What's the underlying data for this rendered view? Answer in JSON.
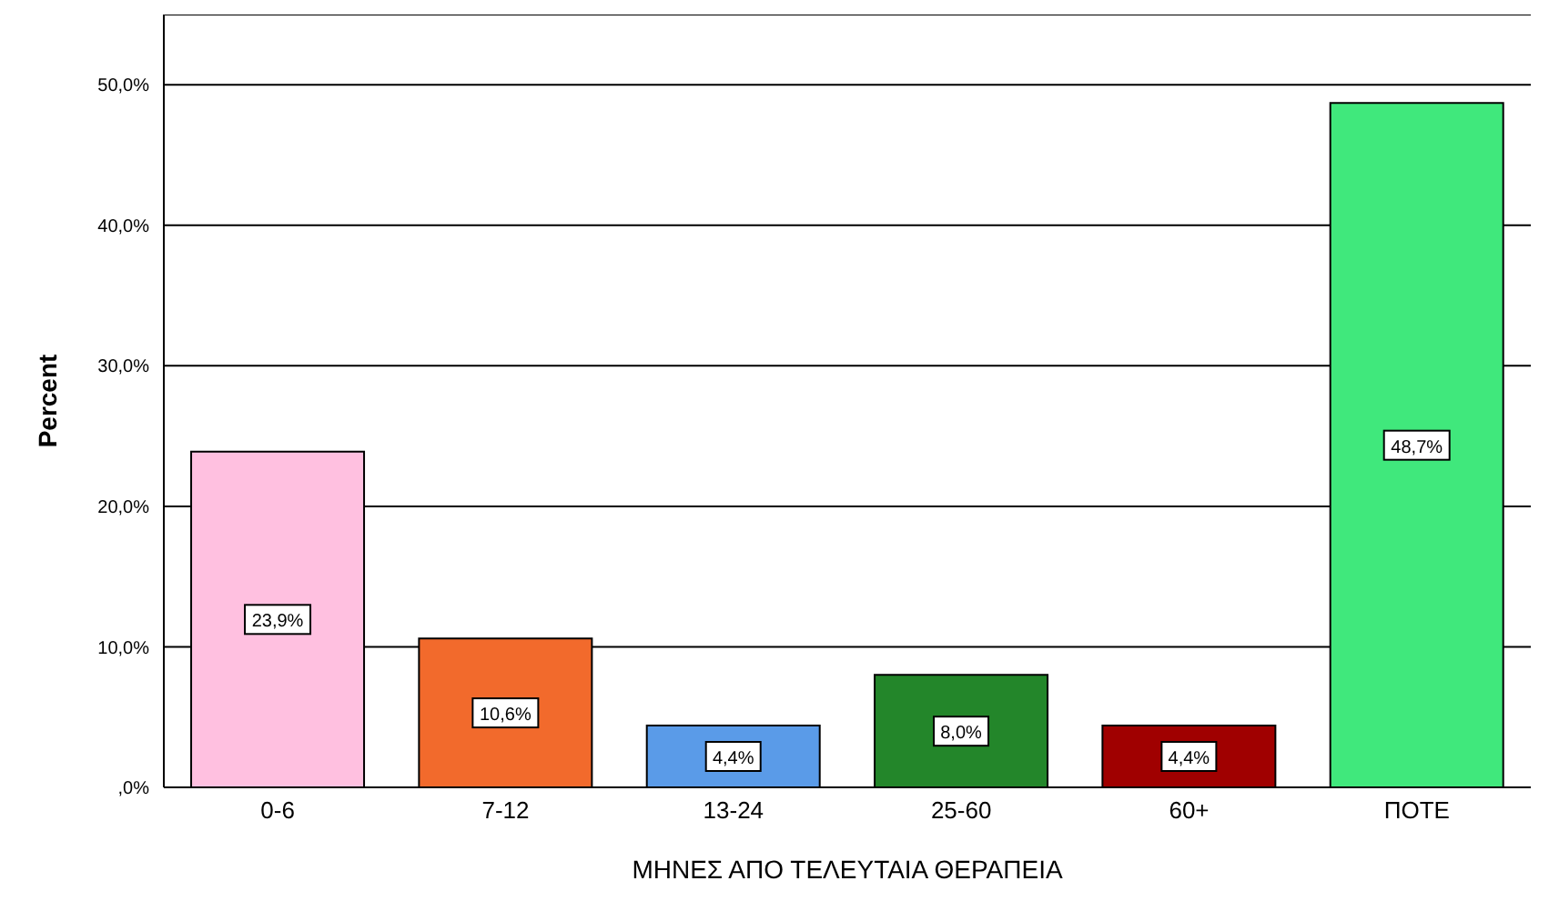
{
  "chart_data": {
    "type": "bar",
    "xlabel": "ΜΗΝΕΣ ΑΠΟ ΤΕΛΕΥΤΑΙΑ ΘΕΡΑΠΕΙΑ",
    "ylabel": "Percent",
    "categories": [
      "0-6",
      "7-12",
      "13-24",
      "25-60",
      "60+",
      "ΠΟΤΕ"
    ],
    "values": [
      23.9,
      10.6,
      4.4,
      8.0,
      4.4,
      48.7
    ],
    "colors": [
      "#ffc0e0",
      "#f26a2c",
      "#5a9be8",
      "#23862a",
      "#a00000",
      "#40e87c"
    ],
    "value_labels": [
      "23,9%",
      "10,6%",
      "4,4%",
      "8,0%",
      "4,4%",
      "48,7%"
    ],
    "ylim": [
      0,
      55
    ],
    "yticks": [
      {
        "value": 0,
        "label": ",0%"
      },
      {
        "value": 10,
        "label": "10,0%"
      },
      {
        "value": 20,
        "label": "20,0%"
      },
      {
        "value": 30,
        "label": "30,0%"
      },
      {
        "value": 40,
        "label": "40,0%"
      },
      {
        "value": 50,
        "label": "50,0%"
      }
    ],
    "grid": "y"
  }
}
